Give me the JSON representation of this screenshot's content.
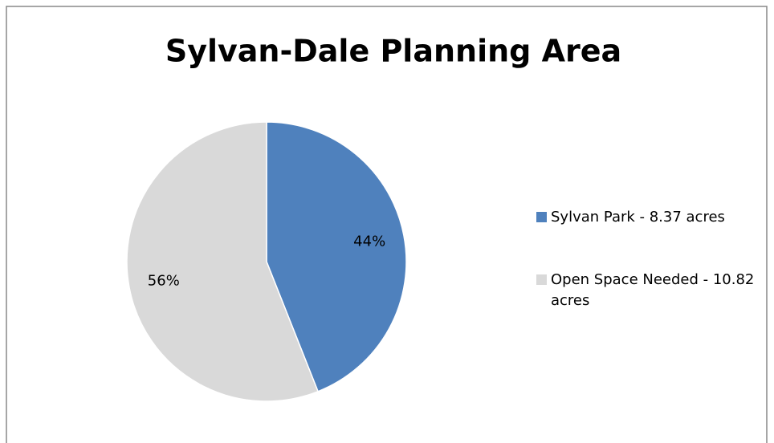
{
  "chart_data": {
    "type": "pie",
    "title": "Sylvan-Dale Planning Area",
    "categories": [
      "Sylvan Park - 8.37 acres",
      "Open Space Needed - 10.82 acres"
    ],
    "values": [
      44,
      56
    ],
    "value_labels": [
      "44%",
      "56%"
    ],
    "colors": [
      "#4f81bd",
      "#d9d9d9"
    ],
    "legend": "right"
  }
}
